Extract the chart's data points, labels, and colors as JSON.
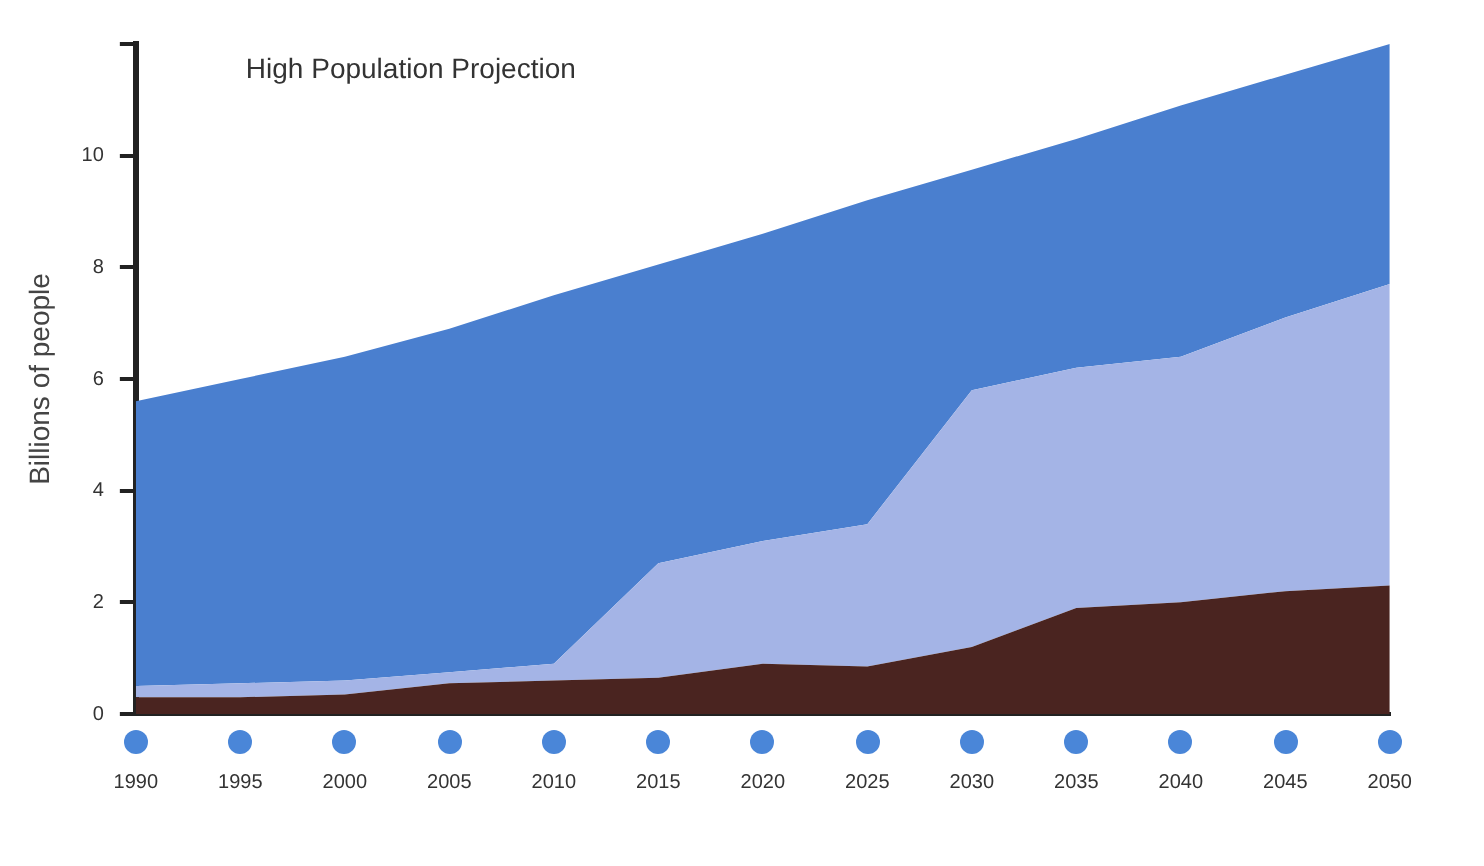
{
  "chart_data": {
    "type": "area",
    "title": "High Population Projection",
    "ylabel": "Billions of people",
    "categories": [
      "1990",
      "1995",
      "2000",
      "2005",
      "2010",
      "2015",
      "2020",
      "2025",
      "2030",
      "2035",
      "2040",
      "2045",
      "2050"
    ],
    "stacked": true,
    "series": [
      {
        "color": "#4a2420",
        "values": [
          0.3,
          0.3,
          0.35,
          0.55,
          0.6,
          0.65,
          0.9,
          0.85,
          1.2,
          1.9,
          2.0,
          2.2,
          2.3
        ]
      },
      {
        "color": "#a4b4e6",
        "values": [
          0.2,
          0.25,
          0.25,
          0.2,
          0.3,
          2.05,
          2.2,
          2.55,
          4.6,
          4.3,
          4.4,
          4.9,
          5.4
        ]
      },
      {
        "color": "#4a7fcf",
        "values": [
          5.1,
          5.45,
          5.8,
          6.15,
          6.6,
          5.35,
          5.5,
          5.8,
          3.95,
          4.1,
          4.5,
          4.35,
          4.3
        ]
      }
    ],
    "ylim": [
      0,
      12
    ],
    "yticks": [
      0,
      2,
      4,
      6,
      8,
      10,
      {
        "value": 12,
        "label": null
      }
    ],
    "grid": false,
    "legend": false,
    "marker": "none"
  }
}
